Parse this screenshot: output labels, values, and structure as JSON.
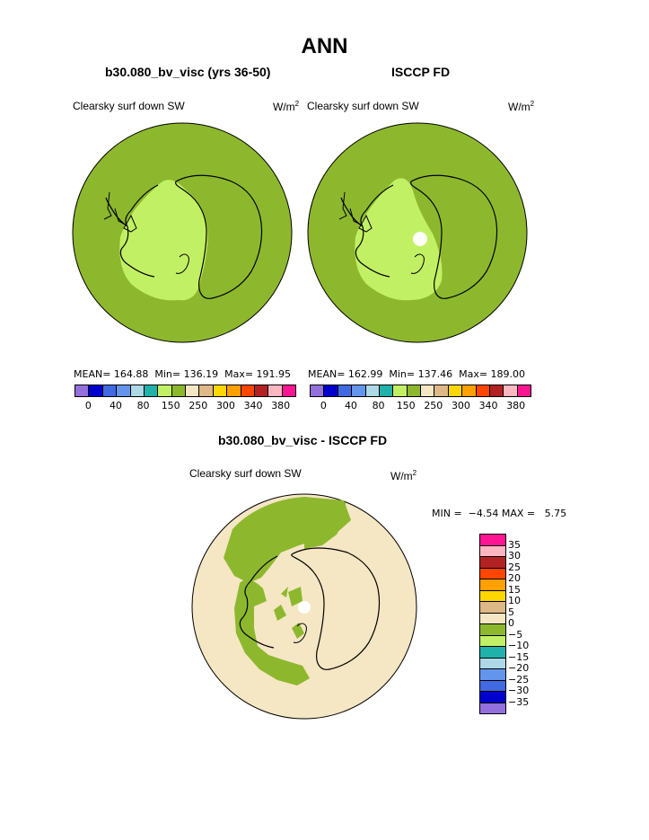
{
  "title": "ANN",
  "panels": [
    {
      "subtitle": "b30.080_bv_visc (yrs 36-50)",
      "variable": "Clearsky surf down SW",
      "units": "W/m",
      "units_sup": "2",
      "stats": "MEAN= 164.88  Min= 136.19  Max= 191.95"
    },
    {
      "subtitle": "ISCCP FD",
      "variable": "Clearsky surf down SW",
      "units": "W/m",
      "units_sup": "2",
      "stats": "MEAN= 162.99  Min= 137.46  Max= 189.00"
    }
  ],
  "colorbar_top": {
    "colors": [
      "#9370DB",
      "#0000CD",
      "#4169E1",
      "#6495ED",
      "#ADD8E6",
      "#20B2AA",
      "#C2F064",
      "#8DB82E",
      "#F5E6C4",
      "#DEB887",
      "#FFD700",
      "#FF9F00",
      "#FF4500",
      "#B22222",
      "#FFB6C1",
      "#FF1493"
    ],
    "ticks": [
      "0",
      "40",
      "80",
      "150",
      "250",
      "300",
      "340",
      "380"
    ]
  },
  "diff": {
    "subtitle": "b30.080_bv_visc - ISCCP FD",
    "variable": "Clearsky surf down SW",
    "units": "W/m",
    "units_sup": "2",
    "stats": "MIN =  −4.54 MAX =   5.75"
  },
  "colorbar_diff": {
    "colors": [
      "#FF1493",
      "#FFB6C1",
      "#B22222",
      "#FF4500",
      "#FF9F00",
      "#FFD700",
      "#DEB887",
      "#F5E6C4",
      "#8DB82E",
      "#C2F064",
      "#20B2AA",
      "#ADD8E6",
      "#6495ED",
      "#4169E1",
      "#0000CD",
      "#9370DB"
    ],
    "ticks": [
      "35",
      "30",
      "25",
      "20",
      "15",
      "10",
      "5",
      "0",
      "−5",
      "−10",
      "−15",
      "−20",
      "−25",
      "−30",
      "−35"
    ]
  },
  "map_colors": {
    "dark_green": "#8DB82E",
    "light_green": "#C2F064",
    "beige": "#F5E6C4",
    "white": "#FFFFFF"
  }
}
